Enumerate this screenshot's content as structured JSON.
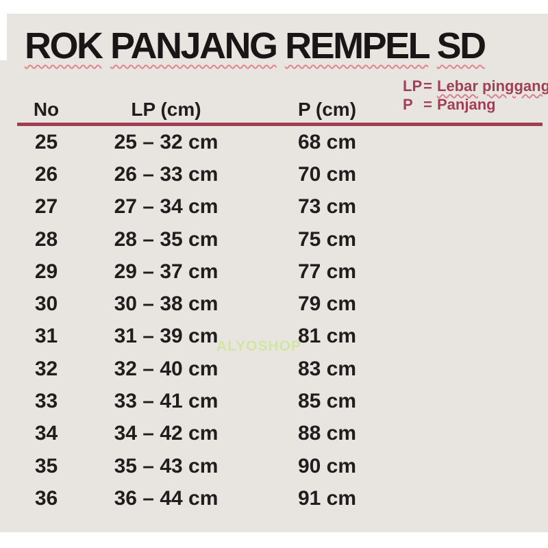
{
  "title": "ROK PANJANG REMPEL SD",
  "legend": {
    "rows": [
      {
        "abbr": "LP",
        "eq": "=",
        "term": "Lebar pinggang"
      },
      {
        "abbr": "P",
        "eq": "=",
        "term": "Panjang"
      }
    ]
  },
  "table": {
    "headers": {
      "no": "No",
      "lp": "LP (cm)",
      "p": "P (cm)"
    },
    "rows": [
      {
        "no": "25",
        "lp": "25 – 32 cm",
        "p": "68 cm"
      },
      {
        "no": "26",
        "lp": "26 – 33 cm",
        "p": "70 cm"
      },
      {
        "no": "27",
        "lp": "27 – 34 cm",
        "p": "73 cm"
      },
      {
        "no": "28",
        "lp": "28 – 35 cm",
        "p": "75 cm"
      },
      {
        "no": "29",
        "lp": "29 – 37 cm",
        "p": "77 cm"
      },
      {
        "no": "30",
        "lp": "30 – 38 cm",
        "p": "79 cm"
      },
      {
        "no": "31",
        "lp": "31 – 39 cm",
        "p": "81 cm"
      },
      {
        "no": "32",
        "lp": "32 – 40 cm",
        "p": "83 cm"
      },
      {
        "no": "33",
        "lp": "33 – 41 cm",
        "p": "85 cm"
      },
      {
        "no": "34",
        "lp": "34 – 42 cm",
        "p": "88 cm"
      },
      {
        "no": "35",
        "lp": "35 – 43 cm",
        "p": "90 cm"
      },
      {
        "no": "36",
        "lp": "36 – 44 cm",
        "p": "91 cm"
      }
    ]
  },
  "watermark": "ALYOSHOP",
  "colors": {
    "background": "#e8e5e0",
    "page_margin": "#ffffff",
    "title_text": "#1a1516",
    "title_squiggle": "#e2848b",
    "legend_text": "#a23e56",
    "legend_squiggle": "#d8808d",
    "header_rule": "#a23c52",
    "table_text": "#211d1e",
    "watermark_green": "#c5e581"
  }
}
